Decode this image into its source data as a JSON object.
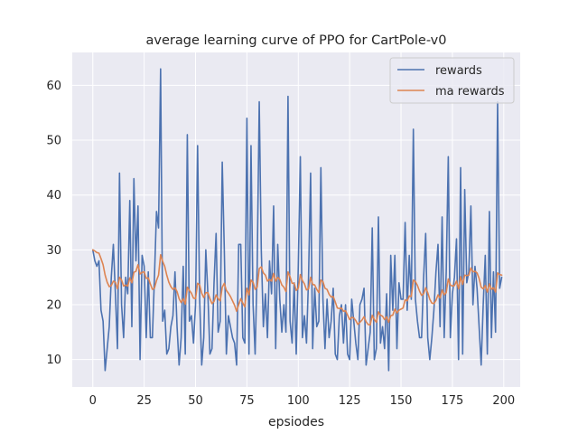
{
  "chart_data": {
    "type": "line",
    "title": "average learning curve of PPO for CartPole-v0",
    "xlabel": "epsiodes",
    "ylabel": "",
    "xlim": [
      -10,
      208
    ],
    "ylim": [
      5,
      66
    ],
    "xticks": [
      0,
      25,
      50,
      75,
      100,
      125,
      150,
      175,
      200
    ],
    "yticks": [
      10,
      20,
      30,
      40,
      50,
      60
    ],
    "grid": true,
    "legend_position": "top-right",
    "series": [
      {
        "name": "rewards",
        "color": "#4c72b0",
        "values": [
          30,
          28,
          27,
          28,
          19,
          17,
          8,
          12,
          16,
          25,
          31,
          22,
          12,
          44,
          20,
          14,
          25,
          22,
          39,
          16,
          43,
          28,
          38,
          10,
          29,
          27,
          14,
          26,
          14,
          14,
          25,
          37,
          34,
          63,
          17,
          19,
          11,
          12,
          16,
          18,
          26,
          16,
          9,
          14,
          27,
          11,
          51,
          17,
          18,
          13,
          20,
          49,
          21,
          9,
          14,
          30,
          22,
          11,
          12,
          24,
          33,
          15,
          17,
          46,
          30,
          11,
          18,
          16,
          14,
          13,
          9,
          31,
          31,
          14,
          13,
          54,
          11,
          49,
          20,
          11,
          27,
          57,
          30,
          16,
          22,
          14,
          28,
          22,
          38,
          12,
          31,
          21,
          15,
          20,
          15,
          58,
          17,
          13,
          24,
          11,
          27,
          47,
          14,
          18,
          13,
          25,
          44,
          12,
          23,
          16,
          17,
          45,
          21,
          12,
          21,
          14,
          17,
          23,
          11,
          10,
          18,
          20,
          13,
          20,
          11,
          10,
          21,
          17,
          13,
          10,
          20,
          21,
          23,
          9,
          12,
          15,
          34,
          10,
          12,
          36,
          13,
          16,
          12,
          22,
          8,
          29,
          19,
          29,
          12,
          24,
          21,
          21,
          35,
          19,
          29,
          21,
          52,
          21,
          17,
          14,
          14,
          25,
          33,
          14,
          10,
          14,
          19,
          26,
          31,
          16,
          36,
          14,
          26,
          47,
          14,
          22,
          25,
          32,
          10,
          45,
          11,
          41,
          24,
          26,
          38,
          20,
          27,
          23,
          16,
          9,
          20,
          29,
          11,
          37,
          14,
          26,
          15,
          57,
          23,
          25
        ]
      },
      {
        "name": "ma rewards",
        "color": "#dd8452",
        "values": [
          30.0,
          29.8,
          29.5,
          29.4,
          28.4,
          27.3,
          25.4,
          24.1,
          23.3,
          23.5,
          24.3,
          24.1,
          22.9,
          25.0,
          24.5,
          23.4,
          23.6,
          23.4,
          24.9,
          24.0,
          25.9,
          26.1,
          27.3,
          25.6,
          25.9,
          26.0,
          24.8,
          24.9,
          23.8,
          22.8,
          23.0,
          24.4,
          25.4,
          29.1,
          27.9,
          27.0,
          25.4,
          24.1,
          23.3,
          22.8,
          23.1,
          22.4,
          21.1,
          20.4,
          21.1,
          20.1,
          23.2,
          22.6,
          22.1,
          21.2,
          21.1,
          23.9,
          23.6,
          22.1,
          21.3,
          22.2,
          22.2,
          21.1,
          20.2,
          20.6,
          21.8,
          21.1,
          20.7,
          23.2,
          23.9,
          22.6,
          22.1,
          21.5,
          20.7,
          19.9,
          18.8,
          20.0,
          21.1,
          20.3,
          19.6,
          23.0,
          21.8,
          24.5,
          24.1,
          22.8,
          23.2,
          26.6,
          26.9,
          25.8,
          25.4,
          24.3,
          24.6,
          24.3,
          25.7,
          24.3,
          25.0,
          24.6,
          23.6,
          23.2,
          22.4,
          26.0,
          25.1,
          23.9,
          23.9,
          22.6,
          23.0,
          25.5,
          24.4,
          23.8,
          22.7,
          22.9,
          25.0,
          23.7,
          23.6,
          22.8,
          22.2,
          24.5,
          24.2,
          23.0,
          22.8,
          21.9,
          21.4,
          21.5,
          20.5,
          19.4,
          19.3,
          19.4,
          18.8,
          18.9,
          18.1,
          17.3,
          17.7,
          17.6,
          17.1,
          16.4,
          16.8,
          17.2,
          17.8,
          16.9,
          16.4,
          16.3,
          18.1,
          17.3,
          16.8,
          18.7,
          18.1,
          17.9,
          17.3,
          17.8,
          16.8,
          18.0,
          18.1,
          19.2,
          18.5,
          19.0,
          19.2,
          19.4,
          20.9,
          20.7,
          21.6,
          21.5,
          24.5,
          24.2,
          23.5,
          22.5,
          21.7,
          22.0,
          23.1,
          22.2,
          21.0,
          20.3,
          20.2,
          20.8,
          21.8,
          21.2,
          22.7,
          21.8,
          22.2,
          24.7,
          23.6,
          23.4,
          23.5,
          24.3,
          22.9,
          25.1,
          23.7,
          25.4,
          25.3,
          25.4,
          26.7,
          26.0,
          26.1,
          25.8,
          24.8,
          23.2,
          22.9,
          23.5,
          22.3,
          23.8,
          22.8,
          23.1,
          22.3,
          25.8,
          25.5,
          25.4
        ]
      }
    ]
  }
}
